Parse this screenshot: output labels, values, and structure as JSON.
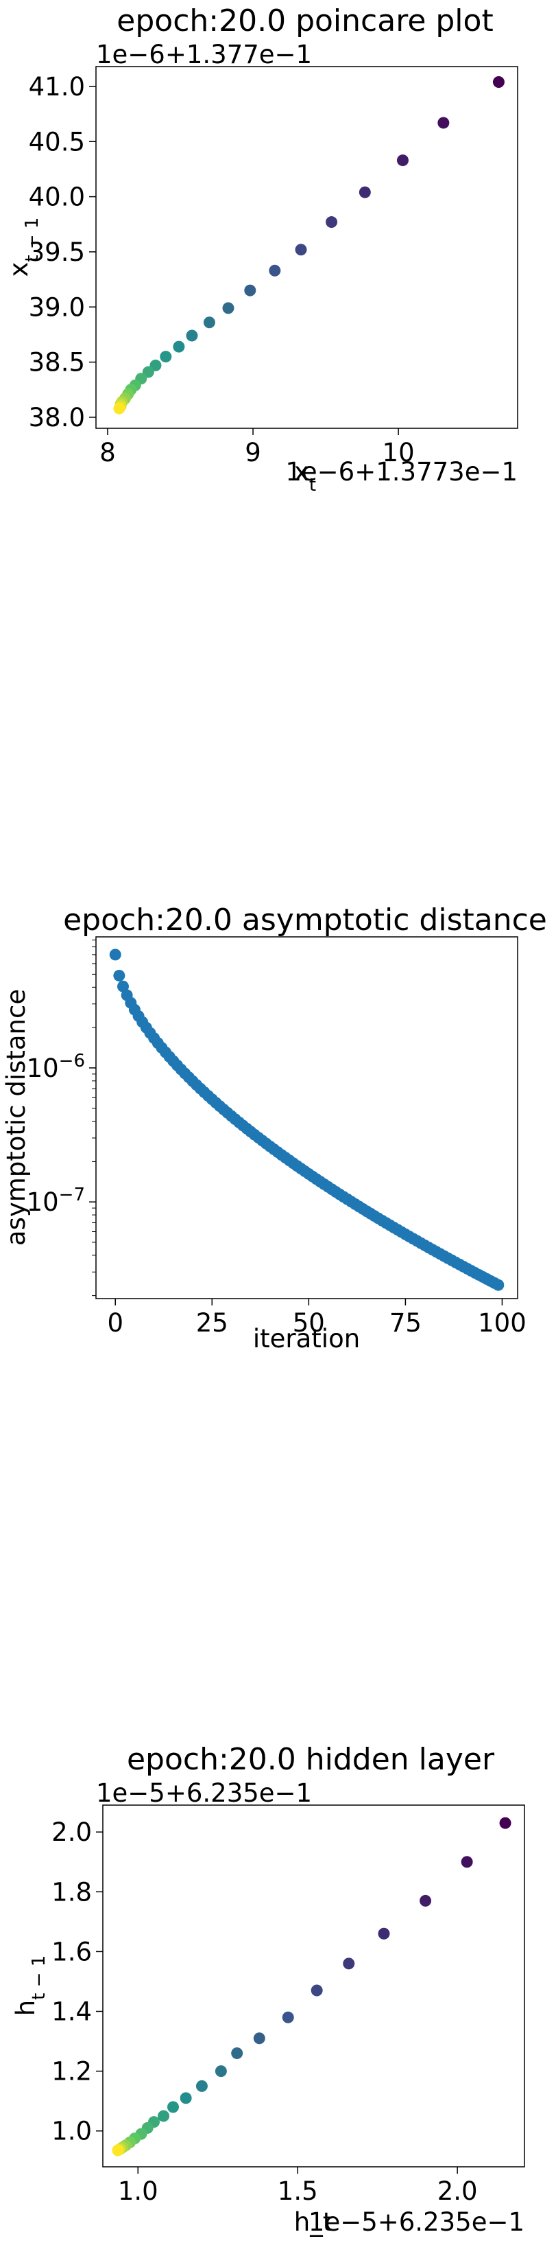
{
  "chart_data": [
    {
      "type": "scatter",
      "title": "epoch:20.0 poincare plot",
      "xlabel": "x_t",
      "ylabel": "x_{t-1}",
      "x_offset_text": "1e−6+1.3773e−1",
      "y_offset_text": "1e−6+1.377e−1",
      "xlim": [
        7.92,
        10.82
      ],
      "ylim": [
        37.9,
        41.18
      ],
      "xticks": [
        8,
        9,
        10
      ],
      "xtick_labels": [
        "8",
        "9",
        "10"
      ],
      "yticks": [
        38.0,
        38.5,
        39.0,
        39.5,
        40.0,
        40.5,
        41.0
      ],
      "ytick_labels": [
        "38.0",
        "38.5",
        "39.0",
        "39.5",
        "40.0",
        "40.5",
        "41.0"
      ],
      "colormap": "viridis",
      "points": [
        [
          10.69,
          41.04
        ],
        [
          10.31,
          40.67
        ],
        [
          10.03,
          40.33
        ],
        [
          9.77,
          40.04
        ],
        [
          9.54,
          39.77
        ],
        [
          9.33,
          39.52
        ],
        [
          9.15,
          39.33
        ],
        [
          8.98,
          39.15
        ],
        [
          8.83,
          38.99
        ],
        [
          8.7,
          38.86
        ],
        [
          8.58,
          38.74
        ],
        [
          8.49,
          38.64
        ],
        [
          8.4,
          38.55
        ],
        [
          8.33,
          38.47
        ],
        [
          8.28,
          38.41
        ],
        [
          8.23,
          38.35
        ],
        [
          8.19,
          38.29
        ],
        [
          8.16,
          38.25
        ],
        [
          8.14,
          38.21
        ],
        [
          8.12,
          38.17
        ],
        [
          8.1,
          38.14
        ],
        [
          8.09,
          38.12
        ],
        [
          8.09,
          38.1
        ],
        [
          8.08,
          38.08
        ]
      ]
    },
    {
      "type": "scatter",
      "title": "epoch:20.0 asymptotic distance",
      "xlabel": "iteration",
      "ylabel": "asymptotic distance",
      "yscale": "log",
      "xlim": [
        -5,
        104
      ],
      "ylim": [
        1.9e-08,
        9.5e-06
      ],
      "xticks": [
        0,
        25,
        50,
        75,
        100
      ],
      "xtick_labels": [
        "0",
        "25",
        "50",
        "75",
        "100"
      ],
      "ytick_major": [
        1e-07,
        1e-06
      ],
      "ytick_labels": [
        "10−7",
        "10−6"
      ],
      "color": "#1f77b4",
      "y_start": 7e-06,
      "y_end": 2.4e-08,
      "n_points": 100
    },
    {
      "type": "scatter",
      "title": "epoch:20.0 hidden layer",
      "xlabel": "h_t",
      "ylabel": "h_{t-1}",
      "x_offset_text": "1e−5+6.235e−1",
      "y_offset_text": "1e−5+6.235e−1",
      "xlim": [
        0.89,
        2.21
      ],
      "ylim": [
        0.88,
        2.09
      ],
      "xticks": [
        1.0,
        1.5,
        2.0
      ],
      "xtick_labels": [
        "1.0",
        "1.5",
        "2.0"
      ],
      "yticks": [
        1.0,
        1.2,
        1.4,
        1.6,
        1.8,
        2.0
      ],
      "ytick_labels": [
        "1.0",
        "1.2",
        "1.4",
        "1.6",
        "1.8",
        "2.0"
      ],
      "colormap": "viridis",
      "points": [
        [
          2.15,
          2.03
        ],
        [
          2.03,
          1.9
        ],
        [
          1.9,
          1.77
        ],
        [
          1.77,
          1.66
        ],
        [
          1.66,
          1.56
        ],
        [
          1.56,
          1.47
        ],
        [
          1.47,
          1.38
        ],
        [
          1.38,
          1.31
        ],
        [
          1.31,
          1.26
        ],
        [
          1.26,
          1.2
        ],
        [
          1.2,
          1.15
        ],
        [
          1.15,
          1.11
        ],
        [
          1.11,
          1.08
        ],
        [
          1.08,
          1.05
        ],
        [
          1.05,
          1.03
        ],
        [
          1.03,
          1.01
        ],
        [
          1.01,
          0.99
        ],
        [
          0.99,
          0.975
        ],
        [
          0.975,
          0.962
        ],
        [
          0.962,
          0.952
        ],
        [
          0.952,
          0.945
        ],
        [
          0.945,
          0.94
        ],
        [
          0.94,
          0.937
        ],
        [
          0.937,
          0.935
        ]
      ]
    }
  ]
}
